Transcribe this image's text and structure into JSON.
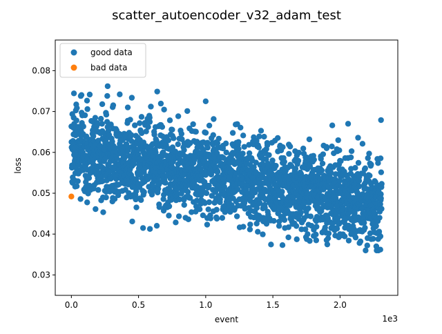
{
  "chart_data": {
    "type": "scatter",
    "title": "scatter_autoencoder_v32_adam_test",
    "xlabel": "event",
    "ylabel": "loss",
    "x_offset_label": "1e3",
    "xlim": [
      -120,
      2430
    ],
    "ylim": [
      0.025,
      0.0875
    ],
    "x_ticks": [
      0,
      500,
      1000,
      1500,
      2000
    ],
    "x_tick_labels": [
      "0.0",
      "0.5",
      "1.0",
      "1.5",
      "2.0"
    ],
    "y_ticks": [
      0.03,
      0.04,
      0.05,
      0.06,
      0.07,
      0.08
    ],
    "y_tick_labels": [
      "0.03",
      "0.04",
      "0.05",
      "0.06",
      "0.07",
      "0.08"
    ],
    "grid": false,
    "legend_placement": "top-left",
    "series": [
      {
        "name": "good data",
        "color": "#1f77b4",
        "x_range": [
          0,
          2310
        ],
        "count": 2300,
        "trend": {
          "start": 0.0605,
          "end": 0.0475
        },
        "spread": 0.0052,
        "min": 0.036,
        "max": 0.0762,
        "highlights": [
          [
            270,
            0.0762
          ],
          [
            360,
            0.0742
          ],
          [
            70,
            0.0738
          ],
          [
            1000,
            0.0725
          ],
          [
            230,
            0.0718
          ],
          [
            420,
            0.071
          ],
          [
            2305,
            0.0679
          ],
          [
            2060,
            0.067
          ],
          [
            1900,
            0.0385
          ],
          [
            2270,
            0.037
          ],
          [
            2300,
            0.0362
          ],
          [
            1280,
            0.0418
          ],
          [
            850,
            0.044
          ],
          [
            1820,
            0.0399
          ],
          [
            2010,
            0.0397
          ]
        ]
      },
      {
        "name": "bad data",
        "color": "#ff7f0e",
        "x": [
          0
        ],
        "y": [
          0.0492
        ]
      }
    ]
  }
}
